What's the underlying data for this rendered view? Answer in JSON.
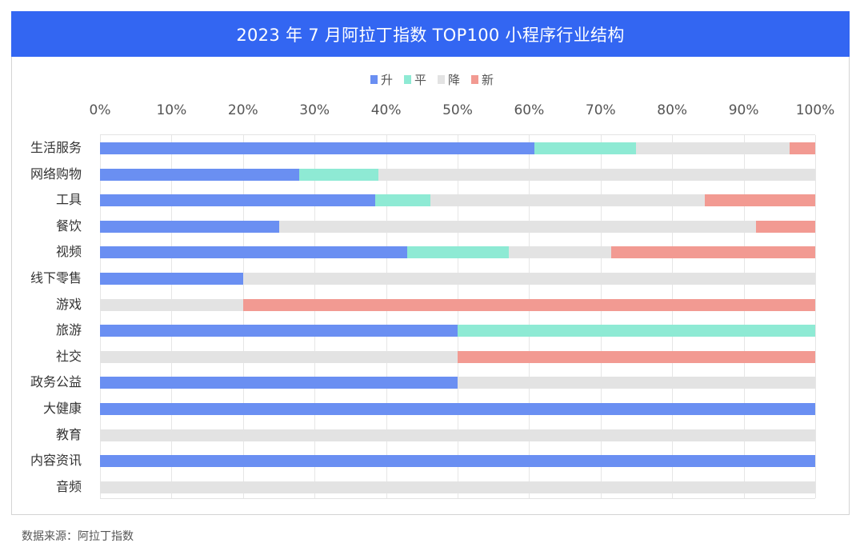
{
  "title": "2023 年 7 月阿拉丁指数 TOP100 小程序行业结构",
  "legend": [
    {
      "label": "升",
      "color": "#6a8ff2"
    },
    {
      "label": "平",
      "color": "#8eead4"
    },
    {
      "label": "降",
      "color": "#e3e3e3"
    },
    {
      "label": "新",
      "color": "#f29a92"
    }
  ],
  "x_ticks": [
    "0%",
    "10%",
    "20%",
    "30%",
    "40%",
    "50%",
    "60%",
    "70%",
    "80%",
    "90%",
    "100%"
  ],
  "source": "数据来源：阿拉丁指数",
  "chart_data": {
    "type": "bar",
    "orientation": "horizontal",
    "stacked": "percent",
    "title": "2023 年 7 月阿拉丁指数 TOP100 小程序行业结构",
    "xlabel": "",
    "ylabel": "",
    "xlim": [
      0,
      100
    ],
    "x_ticks": [
      "0%",
      "10%",
      "20%",
      "30%",
      "40%",
      "50%",
      "60%",
      "70%",
      "80%",
      "90%",
      "100%"
    ],
    "grid": true,
    "legend_position": "top",
    "categories": [
      "生活服务",
      "网络购物",
      "工具",
      "餐饮",
      "视频",
      "线下零售",
      "游戏",
      "旅游",
      "社交",
      "政务公益",
      "大健康",
      "教育",
      "内容资讯",
      "音频"
    ],
    "series": [
      {
        "name": "升",
        "color": "#6a8ff2",
        "values": [
          60.7,
          27.8,
          38.5,
          25.0,
          42.9,
          20.0,
          0,
          50.0,
          0,
          50.0,
          100,
          0,
          100,
          0
        ]
      },
      {
        "name": "平",
        "color": "#8eead4",
        "values": [
          14.3,
          11.1,
          7.7,
          0,
          14.3,
          0,
          0,
          50.0,
          0,
          0,
          0,
          0,
          0,
          0
        ]
      },
      {
        "name": "降",
        "color": "#e3e3e3",
        "values": [
          21.4,
          61.1,
          38.4,
          66.7,
          14.3,
          80.0,
          20.0,
          0,
          50.0,
          50.0,
          0,
          100,
          0,
          100
        ]
      },
      {
        "name": "新",
        "color": "#f29a92",
        "values": [
          3.6,
          0,
          15.4,
          8.3,
          28.5,
          0,
          80.0,
          0,
          50.0,
          0,
          0,
          0,
          0,
          0
        ]
      }
    ]
  }
}
